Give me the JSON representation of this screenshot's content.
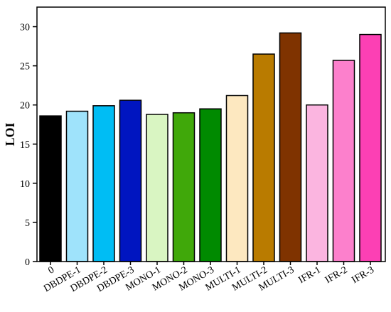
{
  "chart_data": {
    "type": "bar",
    "ylabel": "LOI",
    "xlabel": "",
    "ylim": [
      0,
      32.5
    ],
    "yticks": [
      0,
      5,
      10,
      15,
      20,
      25,
      30
    ],
    "grid": false,
    "categories": [
      "0",
      "DBDPE-1",
      "DBDPE-2",
      "DBDPE-3",
      "MONO-1",
      "MONO-2",
      "MONO-3",
      "MULTI-1",
      "MULTI-2",
      "MULTI-3",
      "IFR-1",
      "IFR-2",
      "IFR-3"
    ],
    "values": [
      18.6,
      19.2,
      19.9,
      20.6,
      18.8,
      19.0,
      19.5,
      21.2,
      26.5,
      29.2,
      20.0,
      25.7,
      29.0
    ],
    "colors": [
      "#000000",
      "#9fe3fb",
      "#00bdf4",
      "#0015c0",
      "#d9f5c2",
      "#40a80a",
      "#008a00",
      "#fde8c0",
      "#b97b00",
      "#7f3300",
      "#fbb5e0",
      "#fc80cc",
      "#fc40b4"
    ]
  }
}
